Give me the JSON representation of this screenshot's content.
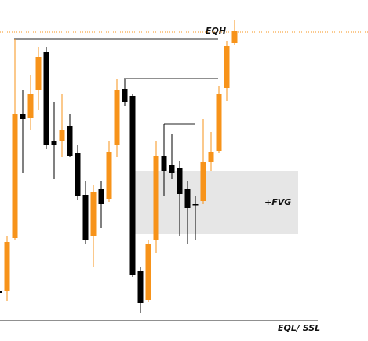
{
  "chart_data": {
    "type": "candlestick",
    "ylim": [
      0,
      434
    ],
    "up_color": "#f7931a",
    "down_color": "#000000",
    "open": [
      64,
      64,
      131,
      289,
      284,
      319,
      368,
      254,
      254,
      274,
      239,
      186,
      134,
      193,
      181,
      249,
      321,
      312,
      89,
      52,
      128,
      236,
      224,
      220,
      194,
      174,
      178,
      228,
      242,
      322,
      379
    ],
    "high": [
      66,
      134,
      384,
      319,
      339,
      374,
      374,
      304,
      314,
      289,
      249,
      204,
      199,
      204,
      254,
      334,
      334,
      314,
      94,
      129,
      254,
      276,
      264,
      229,
      204,
      184,
      282,
      266,
      324,
      382,
      409
    ],
    "low": [
      59,
      51,
      129,
      214,
      269,
      294,
      244,
      206,
      234,
      234,
      179,
      124,
      94,
      144,
      177,
      234,
      299,
      82,
      36,
      50,
      112,
      184,
      206,
      134,
      124,
      129,
      174,
      216,
      239,
      306,
      377
    ],
    "close": [
      61,
      126,
      289,
      283,
      314,
      362,
      249,
      249,
      269,
      236,
      184,
      128,
      189,
      174,
      241,
      319,
      304,
      84,
      49,
      124,
      236,
      216,
      214,
      187,
      169,
      174,
      228,
      241,
      314,
      376,
      394
    ],
    "eqh": {
      "label": "EQH",
      "value": 393
    },
    "eql": {
      "label": "EQL/ SSL",
      "value": 26
    },
    "fvg": {
      "label": "+FVG",
      "top": 216,
      "bottom": 136
    },
    "swing_levels": [
      384,
      334,
      276
    ]
  }
}
